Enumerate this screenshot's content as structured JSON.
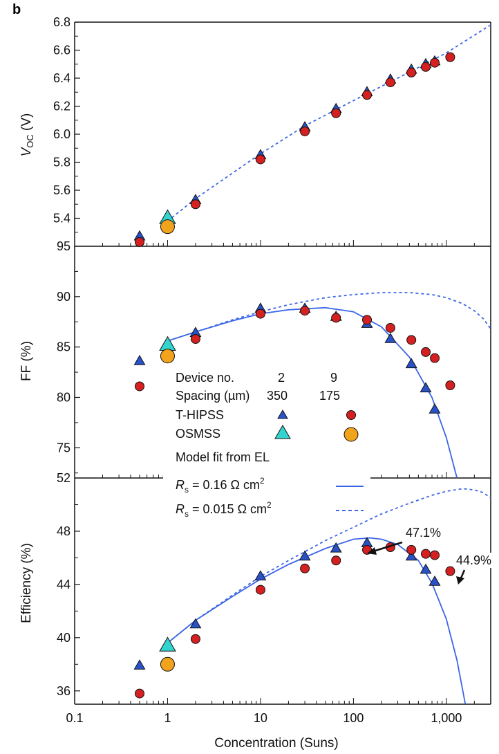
{
  "panel_label": "b",
  "colors": {
    "t_hipss_triangle": "#2a52c8",
    "t_hipss_circle": "#d42020",
    "osmss_triangle": "#33d4d0",
    "osmss_circle": "#f2a31c",
    "fit_line": "#3b66e6"
  },
  "legend": {
    "device_label": "Device no.",
    "device_a": "2",
    "device_b": "9",
    "spacing_label": "Spacing (µm)",
    "spacing_a": "350",
    "spacing_b": "175",
    "t_hipss": "T-HIPSS",
    "osmss": "OSMSS",
    "model_fit": "Model fit from EL",
    "rs1_sym": "R",
    "rs1_sub": "s",
    "rs1_text": " = 0.16 Ω cm",
    "rs1_sup": "2",
    "rs2_sym": "R",
    "rs2_sub": "s",
    "rs2_text": " = 0.015 Ω cm",
    "rs2_sup": "2"
  },
  "chart_data": [
    {
      "type": "scatter",
      "panel": "voc",
      "ylabel_main": "V",
      "ylabel_sub": "OC",
      "ylabel_unit": " (V)",
      "ylim": [
        5.2,
        6.8
      ],
      "yticks": [
        "6.8",
        "6.6",
        "6.4",
        "6.2",
        "6.0",
        "5.8",
        "5.6",
        "5.4"
      ],
      "xscale": "log",
      "xlim": [
        0.1,
        3000
      ],
      "series": [
        {
          "marker": "t_hipss_triangle",
          "x": [
            0.5,
            2,
            10,
            30,
            65,
            140,
            250,
            420,
            600,
            750
          ],
          "y": [
            5.27,
            5.53,
            5.85,
            6.05,
            6.18,
            6.3,
            6.39,
            6.46,
            6.5,
            6.52
          ]
        },
        {
          "marker": "t_hipss_circle",
          "x": [
            0.5,
            2,
            10,
            30,
            65,
            140,
            250,
            420,
            600,
            750,
            1100
          ],
          "y": [
            5.23,
            5.5,
            5.82,
            6.02,
            6.15,
            6.28,
            6.37,
            6.44,
            6.48,
            6.51,
            6.55
          ]
        },
        {
          "marker": "osmss_triangle",
          "x": [
            1
          ],
          "y": [
            5.4
          ]
        },
        {
          "marker": "osmss_circle",
          "x": [
            1
          ],
          "y": [
            5.34
          ]
        }
      ],
      "fits": [
        {
          "style": "dashed",
          "x": [
            1,
            2,
            10,
            30,
            100,
            300,
            1000,
            3000
          ],
          "y": [
            5.38,
            5.54,
            5.86,
            6.06,
            6.24,
            6.4,
            6.58,
            6.78
          ]
        }
      ]
    },
    {
      "type": "scatter",
      "panel": "ff",
      "ylabel": "FF (%)",
      "ylim": [
        72,
        95
      ],
      "yticks": [
        "95",
        "90",
        "85",
        "80",
        "75"
      ],
      "xscale": "log",
      "xlim": [
        0.1,
        3000
      ],
      "series": [
        {
          "marker": "t_hipss_triangle",
          "x": [
            0.5,
            2,
            10,
            30,
            65,
            140,
            250,
            420,
            600,
            750
          ],
          "y": [
            83.6,
            86.4,
            88.8,
            88.8,
            88.0,
            87.3,
            85.8,
            83.3,
            80.9,
            78.8
          ]
        },
        {
          "marker": "t_hipss_circle",
          "x": [
            0.5,
            2,
            10,
            30,
            65,
            140,
            250,
            420,
            600,
            750,
            1100
          ],
          "y": [
            81.1,
            85.8,
            88.3,
            88.6,
            87.9,
            87.7,
            86.9,
            85.7,
            84.5,
            83.9,
            81.2
          ]
        },
        {
          "marker": "osmss_triangle",
          "x": [
            1
          ],
          "y": [
            85.2
          ]
        },
        {
          "marker": "osmss_circle",
          "x": [
            1
          ],
          "y": [
            84.1
          ]
        }
      ],
      "fits": [
        {
          "style": "solid",
          "x": [
            1,
            2,
            5,
            10,
            20,
            50,
            100,
            200,
            400,
            700,
            1000,
            1300
          ],
          "y": [
            85.6,
            86.5,
            87.6,
            88.3,
            88.7,
            88.9,
            88.5,
            87.0,
            84.0,
            80.0,
            76.0,
            72.0
          ]
        },
        {
          "style": "dashed",
          "x": [
            1,
            2,
            5,
            10,
            20,
            50,
            100,
            200,
            400,
            700,
            1000,
            1500,
            2000,
            2500,
            3000
          ],
          "y": [
            85.6,
            86.5,
            87.7,
            88.5,
            89.2,
            89.9,
            90.2,
            90.4,
            90.4,
            90.2,
            89.9,
            89.3,
            88.6,
            87.8,
            86.8
          ]
        }
      ]
    },
    {
      "type": "scatter",
      "panel": "efficiency",
      "ylabel": "Efficiency (%)",
      "ylim": [
        35,
        52
      ],
      "yticks": [
        "52",
        "48",
        "44",
        "40",
        "36"
      ],
      "xscale": "log",
      "xlim": [
        0.1,
        3000
      ],
      "xticks": [
        "0.1",
        "1",
        "10",
        "100",
        "1,000"
      ],
      "xlabel": "Concentration (Suns)",
      "annotations": [
        "47.1%",
        "44.9%"
      ],
      "series": [
        {
          "marker": "t_hipss_triangle",
          "x": [
            0.5,
            2,
            10,
            30,
            65,
            140,
            420,
            600,
            750
          ],
          "y": [
            37.9,
            41.0,
            44.6,
            46.1,
            46.7,
            47.1,
            46.1,
            45.1,
            44.2
          ]
        },
        {
          "marker": "t_hipss_circle",
          "x": [
            0.5,
            2,
            10,
            30,
            65,
            140,
            250,
            420,
            600,
            750,
            1100
          ],
          "y": [
            35.8,
            39.9,
            43.6,
            45.2,
            45.8,
            46.6,
            46.8,
            46.6,
            46.3,
            46.2,
            45.0
          ]
        },
        {
          "marker": "osmss_triangle",
          "x": [
            1
          ],
          "y": [
            39.4
          ]
        },
        {
          "marker": "osmss_circle",
          "x": [
            1
          ],
          "y": [
            38.0
          ]
        }
      ],
      "fits": [
        {
          "style": "solid",
          "x": [
            1,
            2,
            5,
            10,
            20,
            50,
            100,
            150,
            200,
            300,
            500,
            700,
            1000,
            1300,
            1600
          ],
          "y": [
            39.6,
            41.3,
            43.1,
            44.4,
            45.5,
            46.7,
            47.4,
            47.5,
            47.4,
            47.0,
            45.8,
            44.1,
            41.4,
            38.3,
            35.0
          ]
        },
        {
          "style": "dashed",
          "x": [
            1,
            2,
            5,
            10,
            20,
            50,
            100,
            200,
            400,
            700,
            1000,
            1500,
            2000,
            2500,
            3000
          ],
          "y": [
            39.6,
            41.3,
            43.2,
            44.6,
            45.8,
            47.3,
            48.3,
            49.3,
            50.1,
            50.7,
            51.0,
            51.2,
            51.1,
            50.9,
            50.5
          ]
        }
      ]
    }
  ]
}
